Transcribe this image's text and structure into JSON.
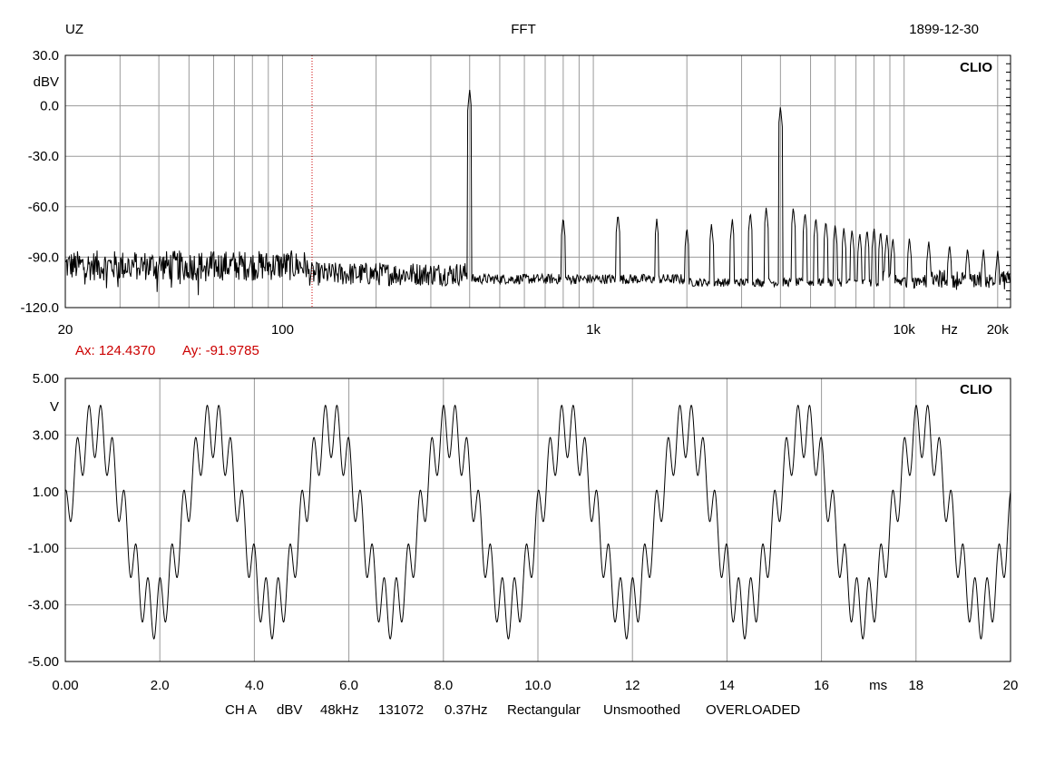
{
  "header": {
    "left": "UZ",
    "center": "FFT",
    "right": "1899-12-30"
  },
  "footer": {
    "channel": "CH A",
    "unit": "dBV",
    "rate": "48kHz",
    "points": "131072",
    "resolution": "0.37Hz",
    "window": "Rectangular",
    "smoothing": "Unsmoothed",
    "status": "OVERLOADED"
  },
  "cursor": {
    "ax_label": "Ax: 124.4370",
    "ay_label": "Ay: -91.9785",
    "ax": 124.437,
    "ay": -91.9785,
    "color": "#cc0000"
  },
  "chart_data": [
    {
      "type": "line",
      "title": "FFT",
      "watermark": "CLIO",
      "xscale": "log",
      "xlim": [
        20,
        22000
      ],
      "ylim": [
        -120,
        30
      ],
      "y_unit": "dBV",
      "x_unit": "Hz",
      "grid": true,
      "yticks": [
        "30.0",
        "0.0",
        "-30.0",
        "-60.0",
        "-90.0",
        "-120.0"
      ],
      "xticks": [
        "20",
        "100",
        "1k",
        "10k",
        "Hz",
        "20k"
      ],
      "noise_floor_db": -97,
      "peaks": [
        {
          "freq": 400,
          "db": 10
        },
        {
          "freq": 800,
          "db": -66
        },
        {
          "freq": 1200,
          "db": -64
        },
        {
          "freq": 1600,
          "db": -67
        },
        {
          "freq": 2000,
          "db": -72
        },
        {
          "freq": 2400,
          "db": -70
        },
        {
          "freq": 2800,
          "db": -67
        },
        {
          "freq": 3200,
          "db": -63
        },
        {
          "freq": 3600,
          "db": -60
        },
        {
          "freq": 4000,
          "db": 0
        },
        {
          "freq": 4400,
          "db": -60
        },
        {
          "freq": 4800,
          "db": -63
        },
        {
          "freq": 5200,
          "db": -66
        },
        {
          "freq": 5600,
          "db": -68
        },
        {
          "freq": 6000,
          "db": -70
        },
        {
          "freq": 6400,
          "db": -72
        },
        {
          "freq": 6800,
          "db": -73
        },
        {
          "freq": 7200,
          "db": -75
        },
        {
          "freq": 7600,
          "db": -73
        },
        {
          "freq": 8000,
          "db": -72
        },
        {
          "freq": 8400,
          "db": -74
        },
        {
          "freq": 8800,
          "db": -76
        },
        {
          "freq": 9200,
          "db": -78
        },
        {
          "freq": 10400,
          "db": -78
        },
        {
          "freq": 12000,
          "db": -80
        },
        {
          "freq": 14000,
          "db": -82
        },
        {
          "freq": 16000,
          "db": -84
        },
        {
          "freq": 18000,
          "db": -85
        },
        {
          "freq": 20000,
          "db": -86
        }
      ]
    },
    {
      "type": "line",
      "title": "",
      "watermark": "CLIO",
      "xlim": [
        0,
        20
      ],
      "ylim": [
        -5,
        5
      ],
      "x_unit": "ms",
      "y_unit": "V",
      "grid": true,
      "yticks": [
        "5.00",
        "3.00",
        "1.00",
        "-1.00",
        "-3.00",
        "-5.00"
      ],
      "xticks": [
        "0.00",
        "2.0",
        "4.0",
        "6.0",
        "8.0",
        "10.0",
        "12",
        "14",
        "16",
        "ms",
        "18",
        "20"
      ],
      "components": [
        {
          "freq_hz": 400,
          "amp_v": 3.2,
          "phase_deg": 0
        },
        {
          "freq_hz": 4000,
          "amp_v": 1.0,
          "phase_deg": 90
        }
      ]
    }
  ]
}
